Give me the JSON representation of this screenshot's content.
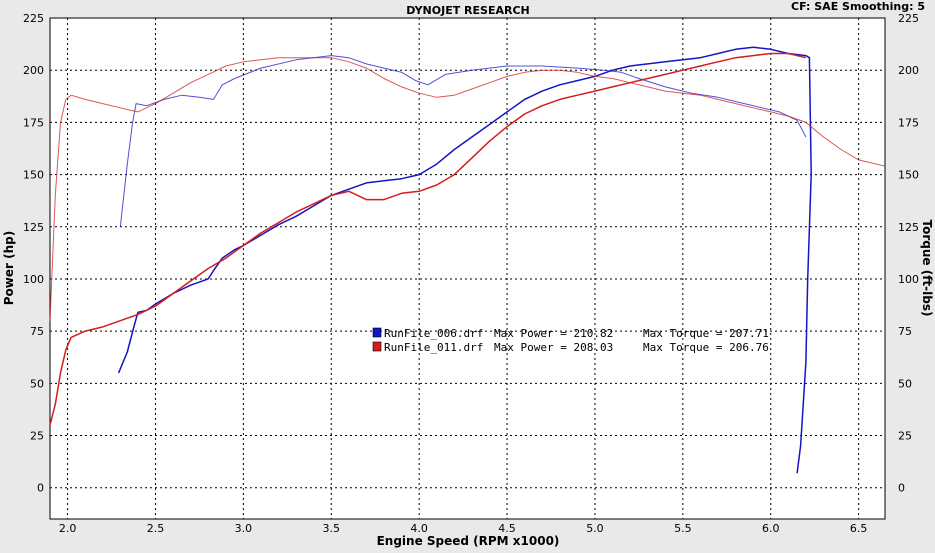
{
  "header": {
    "title": "DYNOJET RESEARCH",
    "info": "CF: SAE  Smoothing: 5"
  },
  "chart_data": {
    "type": "line",
    "title": "DYNOJET RESEARCH",
    "xlabel": "Engine Speed (RPM x1000)",
    "ylabel": "Power (hp)",
    "y2label": "Torque (ft-lbs)",
    "xlim": [
      1.9,
      6.65
    ],
    "ylim": [
      -15,
      225
    ],
    "y2lim": [
      -15,
      225
    ],
    "x_ticks": [
      "2.0",
      "2.5",
      "3.0",
      "3.5",
      "4.0",
      "4.5",
      "5.0",
      "5.5",
      "6.0",
      "6.5"
    ],
    "y_ticks": [
      "0",
      "25",
      "50",
      "75",
      "100",
      "125",
      "150",
      "175",
      "200",
      "225"
    ],
    "y2_ticks": [
      "0",
      "25",
      "50",
      "75",
      "100",
      "125",
      "150",
      "175",
      "200",
      "225"
    ],
    "grid": true,
    "colors": {
      "run006": "#1515c8",
      "run011": "#d21e1e",
      "background": "#e9e9e9",
      "plot": "#ffffff"
    },
    "legend": [
      {
        "file": "RunFile_006.drf",
        "power_label": "Max Power = 210.82",
        "torque_label": "Max Torque = 207.71",
        "color": "#1515c8"
      },
      {
        "file": "RunFile_011.drf",
        "power_label": "Max Power = 208.03",
        "torque_label": "Max Torque = 206.76",
        "color": "#d21e1e"
      }
    ],
    "series": [
      {
        "name": "RunFile_006.drf",
        "kind": "power",
        "color": "#1515c8",
        "x": [
          2.29,
          2.34,
          2.38,
          2.4,
          2.45,
          2.5,
          2.6,
          2.7,
          2.8,
          2.83,
          2.88,
          2.95,
          3.0,
          3.1,
          3.2,
          3.3,
          3.4,
          3.5,
          3.6,
          3.7,
          3.8,
          3.9,
          4.0,
          4.1,
          4.2,
          4.3,
          4.4,
          4.5,
          4.6,
          4.7,
          4.8,
          4.9,
          5.0,
          5.1,
          5.2,
          5.3,
          5.4,
          5.5,
          5.6,
          5.7,
          5.8,
          5.9,
          6.0,
          6.1,
          6.2,
          6.22,
          6.23,
          6.21,
          6.2,
          6.17,
          6.15
        ],
        "y": [
          55,
          65,
          78,
          84,
          85,
          88,
          93,
          97,
          100,
          104,
          110,
          114,
          116,
          121,
          126,
          130,
          135,
          140,
          143,
          146,
          147,
          148,
          150,
          155,
          162,
          168,
          174,
          180,
          186,
          190,
          193,
          195,
          197,
          200,
          202,
          203,
          204,
          205,
          206,
          208,
          210,
          211,
          210,
          208,
          207,
          206,
          150,
          100,
          60,
          20,
          7
        ]
      },
      {
        "name": "RunFile_006.drf",
        "kind": "torque",
        "color": "#1515c8",
        "x": [
          2.3,
          2.34,
          2.37,
          2.39,
          2.45,
          2.55,
          2.65,
          2.75,
          2.83,
          2.88,
          2.95,
          3.1,
          3.3,
          3.5,
          3.6,
          3.7,
          3.8,
          3.9,
          3.98,
          4.05,
          4.15,
          4.3,
          4.5,
          4.7,
          4.9,
          5.05,
          5.15,
          5.25,
          5.4,
          5.55,
          5.7,
          5.85,
          5.95,
          6.05,
          6.15,
          6.2
        ],
        "y": [
          125,
          155,
          175,
          184,
          183,
          186,
          188,
          187,
          186,
          193,
          196,
          201,
          205,
          207,
          206,
          203,
          201,
          199,
          195,
          193,
          198,
          200,
          202,
          202,
          201,
          200,
          199,
          196,
          192,
          189,
          187,
          184,
          182,
          180,
          176,
          168
        ]
      },
      {
        "name": "RunFile_011.drf",
        "kind": "power",
        "color": "#d21e1e",
        "x": [
          1.9,
          1.93,
          1.96,
          1.99,
          2.02,
          2.1,
          2.2,
          2.3,
          2.4,
          2.5,
          2.6,
          2.7,
          2.8,
          2.9,
          3.0,
          3.1,
          3.2,
          3.3,
          3.4,
          3.5,
          3.6,
          3.7,
          3.8,
          3.9,
          4.0,
          4.1,
          4.2,
          4.3,
          4.4,
          4.5,
          4.6,
          4.7,
          4.8,
          4.9,
          5.0,
          5.1,
          5.2,
          5.3,
          5.4,
          5.5,
          5.6,
          5.7,
          5.8,
          5.9,
          6.0,
          6.1,
          6.2
        ],
        "y": [
          30,
          40,
          55,
          66,
          72,
          75,
          77,
          80,
          83,
          87,
          93,
          99,
          105,
          110,
          116,
          122,
          127,
          132,
          136,
          140,
          142,
          138,
          138,
          141,
          142,
          145,
          150,
          158,
          166,
          173,
          179,
          183,
          186,
          188,
          190,
          192,
          194,
          196,
          198,
          200,
          202,
          204,
          206,
          207,
          208,
          208,
          206
        ]
      },
      {
        "name": "RunFile_011.drf",
        "kind": "torque",
        "color": "#d21e1e",
        "x": [
          1.9,
          1.93,
          1.96,
          1.99,
          2.02,
          2.1,
          2.2,
          2.3,
          2.4,
          2.5,
          2.6,
          2.7,
          2.8,
          2.9,
          3.0,
          3.1,
          3.2,
          3.3,
          3.4,
          3.5,
          3.6,
          3.7,
          3.8,
          3.9,
          4.0,
          4.1,
          4.2,
          4.3,
          4.4,
          4.5,
          4.6,
          4.7,
          4.8,
          4.9,
          5.0,
          5.1,
          5.2,
          5.3,
          5.4,
          5.5,
          5.6,
          5.7,
          5.8,
          5.9,
          6.0,
          6.1,
          6.2,
          6.3,
          6.4,
          6.5,
          6.65
        ],
        "y": [
          80,
          140,
          175,
          186,
          188,
          186,
          184,
          182,
          180,
          184,
          189,
          194,
          198,
          202,
          204,
          205,
          206,
          206,
          206,
          206,
          204,
          201,
          196,
          192,
          189,
          187,
          188,
          191,
          194,
          197,
          199,
          200,
          200,
          199,
          197,
          196,
          194,
          192,
          190,
          189,
          188,
          186,
          184,
          182,
          180,
          178,
          175,
          168,
          162,
          157,
          154
        ]
      }
    ]
  }
}
